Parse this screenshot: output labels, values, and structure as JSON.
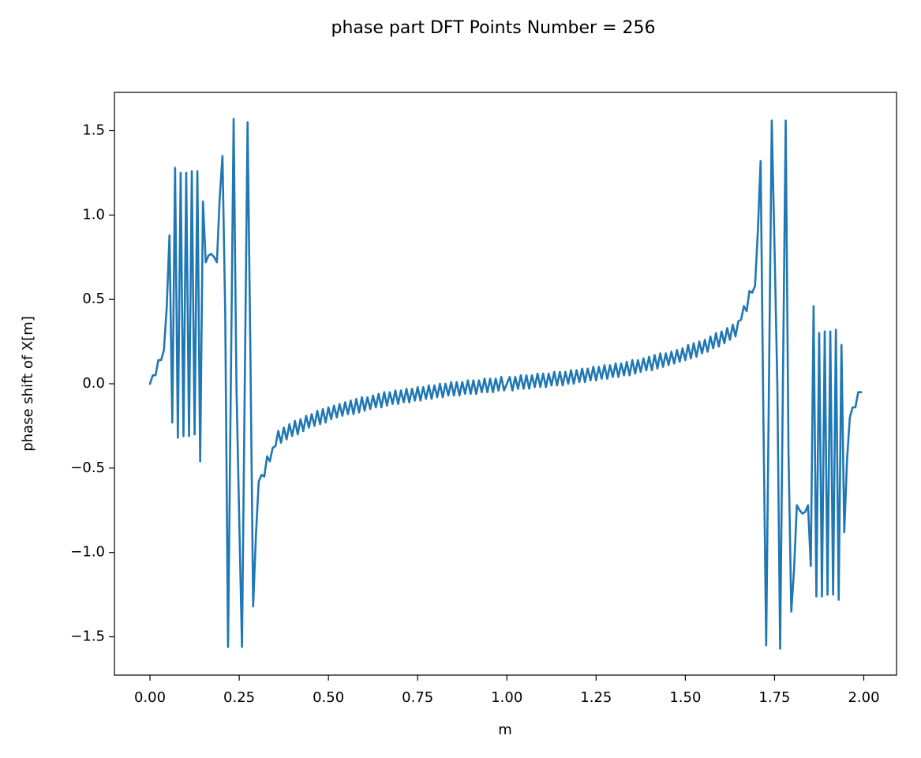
{
  "chart_data": {
    "type": "line",
    "title": "phase part DFT Points Number = 256",
    "x_label": "m",
    "y_label": "phase shift of X[m]",
    "color": "#1f77b4",
    "grid": false,
    "xlim": [
      -0.0996,
      2.0918
    ],
    "ylim": [
      -1.727,
      1.727
    ],
    "xticks": [
      {
        "value": 0,
        "label": "0.00"
      },
      0.25,
      {
        "value": 0.5,
        "label": "0.50"
      },
      0.75,
      {
        "value": 1,
        "label": "1.00"
      },
      1.25,
      {
        "value": 1.5,
        "label": "1.50"
      },
      1.75,
      {
        "value": 2,
        "label": "2.00"
      }
    ],
    "yticks": [
      {
        "value": -1.5,
        "label": "−1.5"
      },
      {
        "value": -1,
        "label": "−1.0"
      },
      {
        "value": -0.5,
        "label": "−0.5"
      },
      {
        "value": 0,
        "label": "0.0"
      },
      0.5,
      {
        "value": 1,
        "label": "1.0"
      },
      1.5
    ],
    "x": [
      0,
      0.0078125,
      0.015625,
      0.0234375,
      0.03125,
      0.0390625,
      0.046875,
      0.0546875,
      0.0625,
      0.0703125,
      0.078125,
      0.0859375,
      0.09375,
      0.1015625,
      0.109375,
      0.1171875,
      0.125,
      0.1328125,
      0.140625,
      0.1484375,
      0.15625,
      0.1640625,
      0.171875,
      0.1796875,
      0.1875,
      0.1953125,
      0.203125,
      0.2109375,
      0.21875,
      0.2265625,
      0.234375,
      0.2421875,
      0.25,
      0.2578125,
      0.265625,
      0.2734375,
      0.28125,
      0.2890625,
      0.296875,
      0.3046875,
      0.3125,
      0.3203125,
      0.328125,
      0.3359375,
      0.34375,
      0.3515625,
      0.359375,
      0.3671875,
      0.375,
      0.3828125,
      0.390625,
      0.3984375,
      0.40625,
      0.4140625,
      0.421875,
      0.4296875,
      0.4375,
      0.4453125,
      0.453125,
      0.4609375,
      0.46875,
      0.4765625,
      0.484375,
      0.4921875,
      0.5,
      0.5078125,
      0.515625,
      0.5234375,
      0.53125,
      0.5390625,
      0.546875,
      0.5546875,
      0.5625,
      0.5703125,
      0.578125,
      0.5859375,
      0.59375,
      0.6015625,
      0.609375,
      0.6171875,
      0.625,
      0.6328125,
      0.640625,
      0.6484375,
      0.65625,
      0.6640625,
      0.671875,
      0.6796875,
      0.6875,
      0.6953125,
      0.703125,
      0.7109375,
      0.71875,
      0.7265625,
      0.734375,
      0.7421875,
      0.75,
      0.7578125,
      0.765625,
      0.7734375,
      0.78125,
      0.7890625,
      0.796875,
      0.8046875,
      0.8125,
      0.8203125,
      0.828125,
      0.8359375,
      0.84375,
      0.8515625,
      0.859375,
      0.8671875,
      0.875,
      0.8828125,
      0.890625,
      0.8984375,
      0.90625,
      0.9140625,
      0.921875,
      0.9296875,
      0.9375,
      0.9453125,
      0.953125,
      0.9609375,
      0.96875,
      0.9765625,
      0.984375,
      0.9921875,
      1,
      1.0078125,
      1.015625,
      1.0234375,
      1.03125,
      1.0390625,
      1.046875,
      1.0546875,
      1.0625,
      1.0703125,
      1.078125,
      1.0859375,
      1.09375,
      1.1015625,
      1.109375,
      1.1171875,
      1.125,
      1.1328125,
      1.140625,
      1.1484375,
      1.15625,
      1.1640625,
      1.171875,
      1.1796875,
      1.1875,
      1.1953125,
      1.203125,
      1.2109375,
      1.21875,
      1.2265625,
      1.234375,
      1.2421875,
      1.25,
      1.2578125,
      1.265625,
      1.2734375,
      1.28125,
      1.2890625,
      1.296875,
      1.3046875,
      1.3125,
      1.3203125,
      1.328125,
      1.3359375,
      1.34375,
      1.3515625,
      1.359375,
      1.3671875,
      1.375,
      1.3828125,
      1.390625,
      1.3984375,
      1.40625,
      1.4140625,
      1.421875,
      1.4296875,
      1.4375,
      1.4453125,
      1.453125,
      1.4609375,
      1.46875,
      1.4765625,
      1.484375,
      1.4921875,
      1.5,
      1.5078125,
      1.515625,
      1.5234375,
      1.53125,
      1.5390625,
      1.546875,
      1.5546875,
      1.5625,
      1.5703125,
      1.578125,
      1.5859375,
      1.59375,
      1.6015625,
      1.609375,
      1.6171875,
      1.625,
      1.6328125,
      1.640625,
      1.6484375,
      1.65625,
      1.6640625,
      1.671875,
      1.6796875,
      1.6875,
      1.6953125,
      1.703125,
      1.7109375,
      1.71875,
      1.7265625,
      1.734375,
      1.7421875,
      1.75,
      1.7578125,
      1.765625,
      1.7734375,
      1.78125,
      1.7890625,
      1.796875,
      1.8046875,
      1.8125,
      1.8203125,
      1.828125,
      1.8359375,
      1.84375,
      1.8515625,
      1.859375,
      1.8671875,
      1.875,
      1.8828125,
      1.890625,
      1.8984375,
      1.90625,
      1.9140625,
      1.921875,
      1.9296875,
      1.9375,
      1.9453125,
      1.953125,
      1.9609375,
      1.96875,
      1.9765625,
      1.984375,
      1.9921875
    ],
    "values": [
      0.0,
      0.05,
      0.05,
      0.14,
      0.14,
      0.2,
      0.45,
      0.88,
      -0.23,
      1.28,
      -0.32,
      1.25,
      -0.31,
      1.25,
      -0.31,
      1.26,
      -0.3,
      1.26,
      -0.46,
      1.08,
      0.72,
      0.76,
      0.77,
      0.75,
      0.72,
      1.1,
      1.35,
      0.4,
      -1.56,
      0.0,
      1.57,
      0.0,
      -0.8,
      -1.56,
      0.0,
      1.55,
      0.2,
      -1.32,
      -0.9,
      -0.58,
      -0.54,
      -0.55,
      -0.43,
      -0.46,
      -0.38,
      -0.37,
      -0.28,
      -0.35,
      -0.26,
      -0.33,
      -0.24,
      -0.31,
      -0.22,
      -0.3,
      -0.21,
      -0.28,
      -0.19,
      -0.26,
      -0.18,
      -0.25,
      -0.16,
      -0.24,
      -0.15,
      -0.23,
      -0.14,
      -0.21,
      -0.13,
      -0.2,
      -0.12,
      -0.19,
      -0.11,
      -0.18,
      -0.1,
      -0.18,
      -0.09,
      -0.17,
      -0.08,
      -0.16,
      -0.08,
      -0.15,
      -0.07,
      -0.14,
      -0.06,
      -0.14,
      -0.05,
      -0.13,
      -0.05,
      -0.12,
      -0.04,
      -0.12,
      -0.04,
      -0.11,
      -0.03,
      -0.11,
      -0.03,
      -0.1,
      -0.02,
      -0.1,
      -0.02,
      -0.09,
      -0.01,
      -0.09,
      -0.01,
      -0.08,
      0.0,
      -0.08,
      0.0,
      -0.07,
      0.01,
      -0.07,
      0.01,
      -0.07,
      0.01,
      -0.06,
      0.02,
      -0.06,
      0.02,
      -0.06,
      0.02,
      -0.05,
      0.03,
      -0.05,
      0.03,
      -0.05,
      0.03,
      -0.04,
      0.04,
      -0.04,
      0.0,
      0.04,
      -0.04,
      0.04,
      -0.03,
      0.05,
      -0.03,
      0.05,
      -0.03,
      0.05,
      -0.02,
      0.06,
      -0.02,
      0.06,
      -0.02,
      0.06,
      -0.01,
      0.07,
      -0.01,
      0.07,
      -0.01,
      0.07,
      0.0,
      0.08,
      0.0,
      0.08,
      0.01,
      0.09,
      0.01,
      0.09,
      0.02,
      0.1,
      0.02,
      0.1,
      0.03,
      0.11,
      0.03,
      0.11,
      0.04,
      0.12,
      0.04,
      0.12,
      0.05,
      0.13,
      0.05,
      0.14,
      0.06,
      0.14,
      0.07,
      0.15,
      0.08,
      0.16,
      0.08,
      0.17,
      0.09,
      0.18,
      0.1,
      0.18,
      0.11,
      0.19,
      0.12,
      0.2,
      0.13,
      0.21,
      0.14,
      0.23,
      0.15,
      0.24,
      0.16,
      0.25,
      0.18,
      0.26,
      0.19,
      0.28,
      0.21,
      0.3,
      0.22,
      0.31,
      0.24,
      0.33,
      0.26,
      0.35,
      0.28,
      0.37,
      0.38,
      0.46,
      0.43,
      0.55,
      0.54,
      0.58,
      0.9,
      1.32,
      -0.2,
      -1.55,
      0.0,
      1.56,
      0.8,
      0.0,
      -1.57,
      0.0,
      1.56,
      -0.4,
      -1.35,
      -1.1,
      -0.72,
      -0.75,
      -0.77,
      -0.76,
      -0.72,
      -1.08,
      0.46,
      -1.26,
      0.3,
      -1.26,
      0.31,
      -1.25,
      0.31,
      -1.25,
      0.32,
      -1.28,
      0.23,
      -0.88,
      -0.45,
      -0.2,
      -0.14,
      -0.14,
      -0.05,
      -0.05
    ]
  }
}
